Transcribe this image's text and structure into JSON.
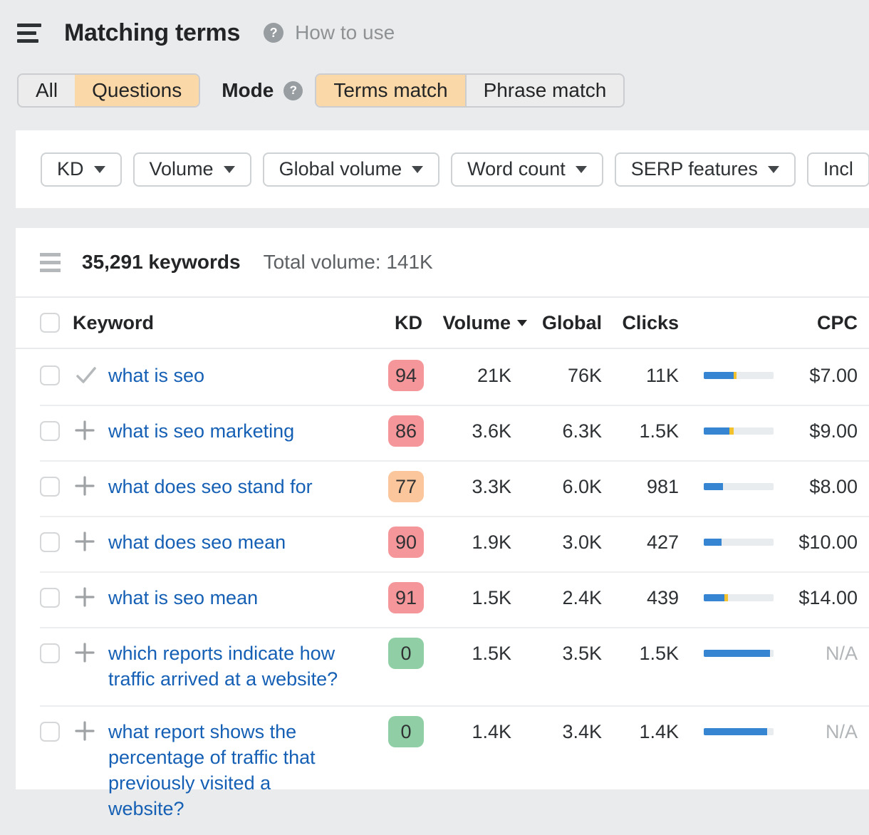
{
  "header": {
    "title": "Matching terms",
    "help_label": "How to use"
  },
  "toolbar": {
    "type_tabs": [
      {
        "label": "All",
        "active": false
      },
      {
        "label": "Questions",
        "active": true
      }
    ],
    "mode_label": "Mode",
    "mode_tabs": [
      {
        "label": "Terms match",
        "active": true
      },
      {
        "label": "Phrase match",
        "active": false
      }
    ]
  },
  "filters": {
    "buttons": [
      "KD",
      "Volume",
      "Global volume",
      "Word count",
      "SERP features",
      "Incl"
    ]
  },
  "summary": {
    "keywords_count": "35,291 keywords",
    "total_volume": "Total volume: 141K"
  },
  "table": {
    "columns": {
      "keyword": "Keyword",
      "kd": "KD",
      "volume": "Volume",
      "global": "Global",
      "clicks": "Clicks",
      "cpc": "CPC"
    },
    "rows": [
      {
        "keyword": "what is seo",
        "icon": "check",
        "kd": "94",
        "kd_color": "red",
        "volume": "21K",
        "global": "76K",
        "clicks": "11K",
        "bar_blue": 43,
        "bar_yellow": 4,
        "cpc": "$7.00"
      },
      {
        "keyword": "what is seo marketing",
        "icon": "plus",
        "kd": "86",
        "kd_color": "red",
        "volume": "3.6K",
        "global": "6.3K",
        "clicks": "1.5K",
        "bar_blue": 37,
        "bar_yellow": 6,
        "cpc": "$9.00"
      },
      {
        "keyword": "what does seo stand for",
        "icon": "plus",
        "kd": "77",
        "kd_color": "orange",
        "volume": "3.3K",
        "global": "6.0K",
        "clicks": "981",
        "bar_blue": 28,
        "bar_yellow": 0,
        "cpc": "$8.00"
      },
      {
        "keyword": "what does seo mean",
        "icon": "plus",
        "kd": "90",
        "kd_color": "red",
        "volume": "1.9K",
        "global": "3.0K",
        "clicks": "427",
        "bar_blue": 26,
        "bar_yellow": 0,
        "cpc": "$10.00"
      },
      {
        "keyword": "what is seo mean",
        "icon": "plus",
        "kd": "91",
        "kd_color": "red",
        "volume": "1.5K",
        "global": "2.4K",
        "clicks": "439",
        "bar_blue": 30,
        "bar_yellow": 5,
        "cpc": "$14.00"
      },
      {
        "keyword": "which reports indicate how traffic arrived at a website?",
        "icon": "plus",
        "kd": "0",
        "kd_color": "green",
        "volume": "1.5K",
        "global": "3.5K",
        "clicks": "1.5K",
        "bar_blue": 95,
        "bar_yellow": 0,
        "cpc": "N/A"
      },
      {
        "keyword": "what report shows the percentage of traffic that previously visited a website?",
        "icon": "plus",
        "kd": "0",
        "kd_color": "green",
        "volume": "1.4K",
        "global": "3.4K",
        "clicks": "1.4K",
        "bar_blue": 91,
        "bar_yellow": 0,
        "cpc": "N/A"
      }
    ]
  },
  "icons": {
    "menu": "hamburger-icon",
    "help": "question-circle-icon",
    "dropdown": "chevron-down-icon",
    "sort": "sort-desc-icon",
    "added": "check-icon",
    "add": "plus-icon",
    "list_options": "list-icon"
  },
  "colors": {
    "kd_red": "#f4969a",
    "kd_orange": "#fbc69b",
    "kd_green": "#90cfa5",
    "bar_blue": "#3585d3",
    "bar_yellow": "#f2c12e",
    "active_tab_bg": "#fbd8a8",
    "link_blue": "#1560b5"
  }
}
